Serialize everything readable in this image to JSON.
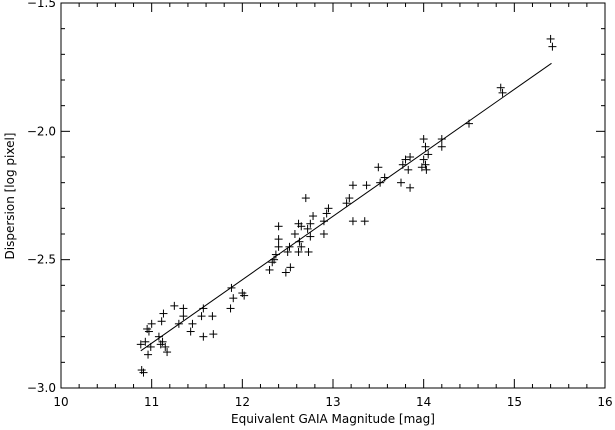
{
  "chart_data": {
    "type": "scatter",
    "title": "",
    "xlabel": "Equivalent GAIA Magnitude [mag]",
    "ylabel": "Dispersion [log pixel]",
    "xlim": [
      10,
      16
    ],
    "ylim": [
      -3.0,
      -1.5
    ],
    "xticks": [
      10,
      11,
      12,
      13,
      14,
      15,
      16
    ],
    "yticks": [
      -3.0,
      -2.5,
      -2.0,
      -1.5
    ],
    "xtick_labels": [
      "10",
      "11",
      "12",
      "13",
      "14",
      "15",
      "16"
    ],
    "ytick_labels": [
      "−3.0",
      "−2.5",
      "−2.0",
      "−1.5"
    ],
    "marker": "plus",
    "color": "#000000",
    "grid": false,
    "legend": "none",
    "series": [
      {
        "points": [
          [
            10.89,
            -2.93
          ],
          [
            10.91,
            -2.94
          ],
          [
            10.88,
            -2.83
          ],
          [
            10.93,
            -2.82
          ],
          [
            10.95,
            -2.77
          ],
          [
            10.97,
            -2.78
          ],
          [
            10.96,
            -2.87
          ],
          [
            10.99,
            -2.84
          ],
          [
            11.0,
            -2.75
          ],
          [
            11.08,
            -2.8
          ],
          [
            11.1,
            -2.83
          ],
          [
            11.12,
            -2.82
          ],
          [
            11.11,
            -2.74
          ],
          [
            11.13,
            -2.71
          ],
          [
            11.17,
            -2.86
          ],
          [
            11.15,
            -2.84
          ],
          [
            11.25,
            -2.68
          ],
          [
            11.3,
            -2.75
          ],
          [
            11.35,
            -2.72
          ],
          [
            11.35,
            -2.69
          ],
          [
            11.43,
            -2.78
          ],
          [
            11.45,
            -2.75
          ],
          [
            11.55,
            -2.72
          ],
          [
            11.57,
            -2.69
          ],
          [
            11.57,
            -2.8
          ],
          [
            11.67,
            -2.72
          ],
          [
            11.68,
            -2.79
          ],
          [
            11.87,
            -2.69
          ],
          [
            11.9,
            -2.65
          ],
          [
            11.88,
            -2.61
          ],
          [
            12.0,
            -2.63
          ],
          [
            12.02,
            -2.64
          ],
          [
            12.3,
            -2.54
          ],
          [
            12.33,
            -2.51
          ],
          [
            12.35,
            -2.5
          ],
          [
            12.37,
            -2.48
          ],
          [
            12.4,
            -2.45
          ],
          [
            12.4,
            -2.37
          ],
          [
            12.4,
            -2.42
          ],
          [
            12.48,
            -2.55
          ],
          [
            12.5,
            -2.47
          ],
          [
            12.53,
            -2.53
          ],
          [
            12.52,
            -2.45
          ],
          [
            12.58,
            -2.4
          ],
          [
            12.62,
            -2.47
          ],
          [
            12.63,
            -2.43
          ],
          [
            12.65,
            -2.45
          ],
          [
            12.62,
            -2.36
          ],
          [
            12.65,
            -2.37
          ],
          [
            12.7,
            -2.26
          ],
          [
            12.72,
            -2.38
          ],
          [
            12.75,
            -2.36
          ],
          [
            12.78,
            -2.33
          ],
          [
            12.75,
            -2.41
          ],
          [
            12.73,
            -2.47
          ],
          [
            12.9,
            -2.35
          ],
          [
            12.93,
            -2.32
          ],
          [
            12.95,
            -2.3
          ],
          [
            12.9,
            -2.4
          ],
          [
            13.15,
            -2.28
          ],
          [
            13.18,
            -2.26
          ],
          [
            13.22,
            -2.21
          ],
          [
            13.22,
            -2.35
          ],
          [
            13.35,
            -2.35
          ],
          [
            13.37,
            -2.21
          ],
          [
            13.5,
            -2.14
          ],
          [
            13.52,
            -2.2
          ],
          [
            13.57,
            -2.18
          ],
          [
            13.77,
            -2.13
          ],
          [
            13.8,
            -2.11
          ],
          [
            13.83,
            -2.15
          ],
          [
            13.85,
            -2.1
          ],
          [
            13.75,
            -2.2
          ],
          [
            13.85,
            -2.22
          ],
          [
            14.0,
            -2.03
          ],
          [
            14.02,
            -2.06
          ],
          [
            14.0,
            -2.11
          ],
          [
            14.02,
            -2.13
          ],
          [
            14.05,
            -2.09
          ],
          [
            13.98,
            -2.14
          ],
          [
            14.03,
            -2.15
          ],
          [
            14.2,
            -2.06
          ],
          [
            14.2,
            -2.03
          ],
          [
            14.5,
            -1.97
          ],
          [
            14.85,
            -1.83
          ],
          [
            14.87,
            -1.85
          ],
          [
            15.4,
            -1.64
          ],
          [
            15.42,
            -1.67
          ]
        ]
      }
    ],
    "fit_line": {
      "x": [
        10.88,
        15.41
      ],
      "y": [
        -2.855,
        -1.735
      ]
    }
  }
}
